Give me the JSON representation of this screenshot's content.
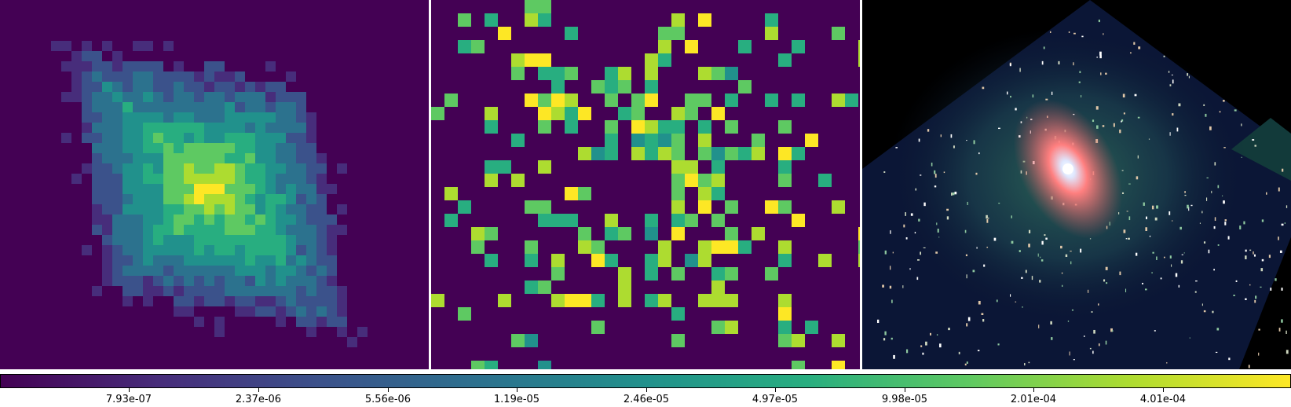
{
  "colormap": [
    "#440154",
    "#472d7b",
    "#3b528b",
    "#2c728e",
    "#21918c",
    "#28ae80",
    "#5ec962",
    "#addc30",
    "#fde725"
  ],
  "panels": {
    "left": {
      "kind": "smooth-map"
    },
    "middle": {
      "kind": "masked-map"
    },
    "right": {
      "kind": "galaxy-image",
      "core_color": "#ff7f7f",
      "background": "#000000"
    }
  },
  "colorbar": {
    "ticks": [
      "7.93e-07",
      "2.37e-06",
      "5.56e-06",
      "1.19e-05",
      "2.46e-05",
      "4.97e-05",
      "9.98e-05",
      "2.01e-04",
      "4.01e-04"
    ]
  }
}
